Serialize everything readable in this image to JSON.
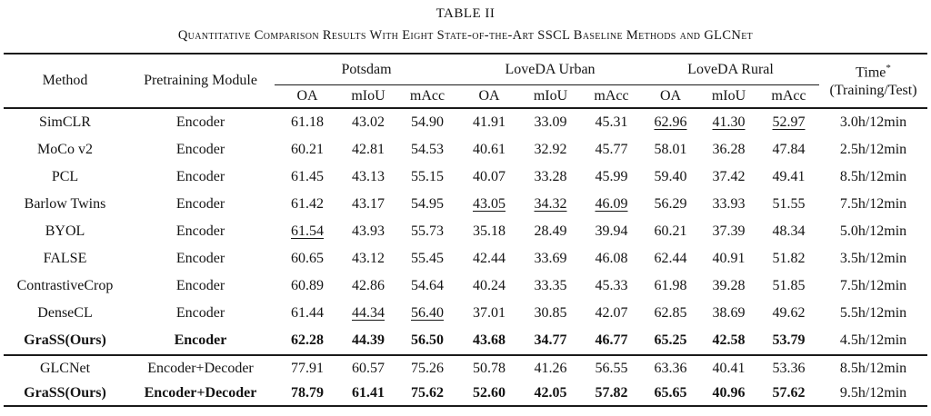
{
  "caption": {
    "label": "TABLE II",
    "title": "Quantitative Comparison Results With Eight State-of-the-Art SSCL Baseline Methods and GLCNet"
  },
  "header": {
    "method": "Method",
    "pretraining_module": "Pretraining Module",
    "groups": [
      "Potsdam",
      "LoveDA Urban",
      "LoveDA Rural"
    ],
    "metrics": [
      "OA",
      "mIoU",
      "mAcc"
    ],
    "time": {
      "label": "Time",
      "sup": "*",
      "sub": "(Training/Test)"
    }
  },
  "rows": [
    {
      "method": "SimCLR",
      "module": "Encoder",
      "potsdam": {
        "oa": "61.18",
        "miou": "43.02",
        "macc": "54.90"
      },
      "urban": {
        "oa": "41.91",
        "miou": "33.09",
        "macc": "45.31"
      },
      "rural": {
        "oa": "62.96",
        "miou": "41.30",
        "macc": "52.97"
      },
      "time": "3.0h/12min"
    },
    {
      "method": "MoCo v2",
      "module": "Encoder",
      "potsdam": {
        "oa": "60.21",
        "miou": "42.81",
        "macc": "54.53"
      },
      "urban": {
        "oa": "40.61",
        "miou": "32.92",
        "macc": "45.77"
      },
      "rural": {
        "oa": "58.01",
        "miou": "36.28",
        "macc": "47.84"
      },
      "time": "2.5h/12min"
    },
    {
      "method": "PCL",
      "module": "Encoder",
      "potsdam": {
        "oa": "61.45",
        "miou": "43.13",
        "macc": "55.15"
      },
      "urban": {
        "oa": "40.07",
        "miou": "33.28",
        "macc": "45.99"
      },
      "rural": {
        "oa": "59.40",
        "miou": "37.42",
        "macc": "49.41"
      },
      "time": "8.5h/12min"
    },
    {
      "method": "Barlow Twins",
      "module": "Encoder",
      "potsdam": {
        "oa": "61.42",
        "miou": "43.17",
        "macc": "54.95"
      },
      "urban": {
        "oa": "43.05",
        "miou": "34.32",
        "macc": "46.09"
      },
      "rural": {
        "oa": "56.29",
        "miou": "33.93",
        "macc": "51.55"
      },
      "time": "7.5h/12min"
    },
    {
      "method": "BYOL",
      "module": "Encoder",
      "potsdam": {
        "oa": "61.54",
        "miou": "43.93",
        "macc": "55.73"
      },
      "urban": {
        "oa": "35.18",
        "miou": "28.49",
        "macc": "39.94"
      },
      "rural": {
        "oa": "60.21",
        "miou": "37.39",
        "macc": "48.34"
      },
      "time": "5.0h/12min"
    },
    {
      "method": "FALSE",
      "module": "Encoder",
      "potsdam": {
        "oa": "60.65",
        "miou": "43.12",
        "macc": "55.45"
      },
      "urban": {
        "oa": "42.44",
        "miou": "33.69",
        "macc": "46.08"
      },
      "rural": {
        "oa": "62.44",
        "miou": "40.91",
        "macc": "51.82"
      },
      "time": "3.5h/12min"
    },
    {
      "method": "ContrastiveCrop",
      "module": "Encoder",
      "potsdam": {
        "oa": "60.89",
        "miou": "42.86",
        "macc": "54.64"
      },
      "urban": {
        "oa": "40.24",
        "miou": "33.35",
        "macc": "45.33"
      },
      "rural": {
        "oa": "61.98",
        "miou": "39.28",
        "macc": "51.85"
      },
      "time": "7.5h/12min"
    },
    {
      "method": "DenseCL",
      "module": "Encoder",
      "potsdam": {
        "oa": "61.44",
        "miou": "44.34",
        "macc": "56.40"
      },
      "urban": {
        "oa": "37.01",
        "miou": "30.85",
        "macc": "42.07"
      },
      "rural": {
        "oa": "62.85",
        "miou": "38.69",
        "macc": "49.62"
      },
      "time": "5.5h/12min"
    },
    {
      "method": "GraSS(Ours)",
      "module": "Encoder",
      "potsdam": {
        "oa": "62.28",
        "miou": "44.39",
        "macc": "56.50"
      },
      "urban": {
        "oa": "43.68",
        "miou": "34.77",
        "macc": "46.77"
      },
      "rural": {
        "oa": "65.25",
        "miou": "42.58",
        "macc": "53.79"
      },
      "time": "4.5h/12min"
    },
    {
      "method": "GLCNet",
      "module": "Encoder+Decoder",
      "potsdam": {
        "oa": "77.91",
        "miou": "60.57",
        "macc": "75.26"
      },
      "urban": {
        "oa": "50.78",
        "miou": "41.26",
        "macc": "56.55"
      },
      "rural": {
        "oa": "63.36",
        "miou": "40.41",
        "macc": "53.36"
      },
      "time": "8.5h/12min"
    },
    {
      "method": "GraSS(Ours)",
      "module": "Encoder+Decoder",
      "potsdam": {
        "oa": "78.79",
        "miou": "61.41",
        "macc": "75.62"
      },
      "urban": {
        "oa": "52.60",
        "miou": "42.05",
        "macc": "57.82"
      },
      "rural": {
        "oa": "65.65",
        "miou": "40.96",
        "macc": "57.62"
      },
      "time": "9.5h/12min"
    }
  ]
}
